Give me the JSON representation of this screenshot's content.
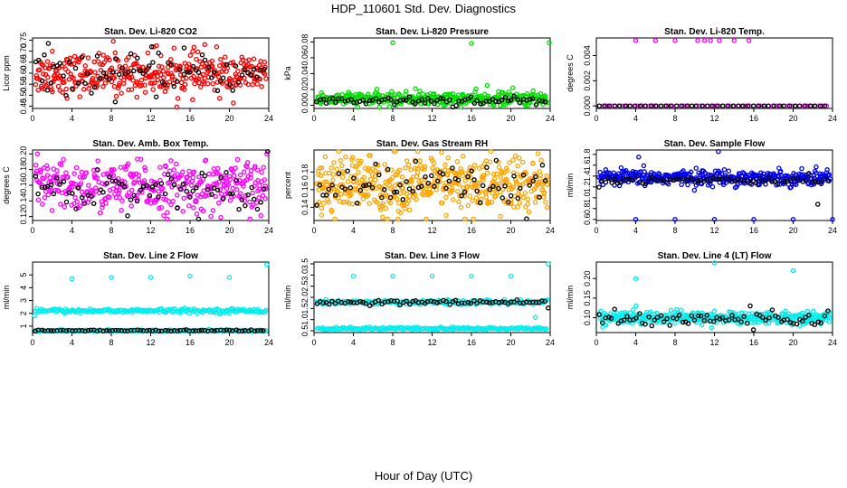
{
  "figure": {
    "title": "HDP_110601  Std. Dev. Diagnostics",
    "xlabel": "Hour of Day (UTC)"
  },
  "chart_data": [
    {
      "type": "scatter",
      "title": "Stan. Dev. Li-820 CO2",
      "ylabel": "Licor ppm",
      "xlim": [
        0,
        24
      ],
      "ylim": [
        0.44,
        0.76
      ],
      "x_ticks": [
        "0",
        "4",
        "8",
        "12",
        "16",
        "20",
        "24"
      ],
      "y_ticks": [
        0.45,
        0.5,
        0.55,
        0.6,
        0.65,
        0.7,
        0.75
      ],
      "y_tick_labels": [
        "0.45",
        "0.50",
        "0.55",
        "0.60",
        "0.65",
        "0.70",
        "0.75"
      ],
      "primary_color": "#ff0000",
      "series": [
        {
          "color": "#ff0000",
          "center": 0.595,
          "spread": 0.045,
          "n": 380,
          "x": [
            8.2,
            12.3,
            17.5,
            2.0
          ],
          "y": [
            0.745,
            0.72,
            0.73,
            0.7
          ]
        },
        {
          "color": "#000000",
          "center": 0.595,
          "spread": 0.04,
          "n": 75,
          "x": [
            1.6,
            12.1,
            15.4,
            8.4
          ],
          "y": [
            0.735,
            0.72,
            0.715,
            0.47
          ]
        }
      ]
    },
    {
      "type": "scatter",
      "title": "Stan. Dev. Li-820 Pressure",
      "ylabel": "kPa",
      "xlim": [
        0,
        24
      ],
      "ylim": [
        -0.004,
        0.085
      ],
      "x_ticks": [
        "0",
        "4",
        "8",
        "12",
        "16",
        "20",
        "24"
      ],
      "y_ticks": [
        0,
        0.02,
        0.04,
        0.06,
        0.08
      ],
      "y_tick_labels": [
        "0.00",
        "0.02",
        "0.04",
        "0.06",
        "0.08"
      ],
      "primary_color": "#00dd00",
      "series": [
        {
          "color": "#00dd00",
          "center": 0.008,
          "spread": 0.004,
          "n": 380,
          "x": [
            8.0,
            16.0,
            23.9,
            10.3,
            17.6,
            20.2
          ],
          "y": [
            0.079,
            0.078,
            0.079,
            0.021,
            0.025,
            0.022
          ]
        },
        {
          "color": "#000000",
          "center": 0.006,
          "spread": 0.003,
          "n": 75,
          "x": [],
          "y": []
        }
      ]
    },
    {
      "type": "scatter",
      "title": "Stan. Dev. Li-820 Temp.",
      "ylabel": "degrees C",
      "xlim": [
        0,
        24
      ],
      "ylim": [
        -0.0002,
        0.0054
      ],
      "x_ticks": [
        "0",
        "4",
        "8",
        "12",
        "16",
        "20",
        "24"
      ],
      "y_ticks": [
        0,
        0.002,
        0.004
      ],
      "y_tick_labels": [
        "0.000",
        "0.002",
        "0.004"
      ],
      "primary_color": "#ff00ff",
      "series": [
        {
          "color": "#ff00ff",
          "center": 0.0,
          "spread": 0.0,
          "n": 60,
          "x": [
            4.0,
            6.0,
            8.0,
            10.3,
            11.0,
            11.6,
            12.5,
            14.0,
            15.5
          ],
          "y": [
            0.0052,
            0.0052,
            0.0052,
            0.0052,
            0.0052,
            0.0052,
            0.0052,
            0.0052,
            0.0052
          ]
        },
        {
          "color": "#000000",
          "center": 0.0,
          "spread": 0.0,
          "n": 45,
          "x": [],
          "y": []
        }
      ]
    },
    {
      "type": "scatter",
      "title": "Stan. Dev. Amb. Box Temp.",
      "ylabel": "degrees C",
      "xlim": [
        0,
        24
      ],
      "ylim": [
        0.115,
        0.205
      ],
      "x_ticks": [
        "0",
        "4",
        "8",
        "12",
        "16",
        "20",
        "24"
      ],
      "y_ticks": [
        0.12,
        0.14,
        0.16,
        0.18,
        0.2
      ],
      "y_tick_labels": [
        "0.12",
        "0.14",
        "0.16",
        "0.18",
        "0.20"
      ],
      "primary_color": "#ff00ff",
      "series": [
        {
          "color": "#ff00ff",
          "center": 0.157,
          "spread": 0.016,
          "n": 380,
          "x": [
            0.5,
            23.8
          ],
          "y": [
            0.2,
            0.2
          ]
        },
        {
          "color": "#000000",
          "center": 0.155,
          "spread": 0.012,
          "n": 75,
          "x": [
            23.9
          ],
          "y": [
            0.203
          ]
        }
      ]
    },
    {
      "type": "scatter",
      "title": "Stan. Dev. Gas Stream RH",
      "ylabel": "percent",
      "xlim": [
        0,
        24
      ],
      "ylim": [
        0.125,
        0.205
      ],
      "x_ticks": [
        "0",
        "4",
        "8",
        "12",
        "16",
        "20",
        "24"
      ],
      "y_ticks": [
        0.14,
        0.16,
        0.18
      ],
      "y_tick_labels": [
        "0.14",
        "0.16",
        "0.18"
      ],
      "primary_color": "#ffa500",
      "series": [
        {
          "color": "#ffa500",
          "center": 0.165,
          "spread": 0.017,
          "n": 480,
          "x": [],
          "y": []
        },
        {
          "color": "#000000",
          "center": 0.163,
          "spread": 0.012,
          "n": 75,
          "x": [],
          "y": []
        }
      ]
    },
    {
      "type": "scatter",
      "title": "Stan. Dev. Sample Flow",
      "ylabel": "ml/min",
      "xlim": [
        0,
        24
      ],
      "ylim": [
        0.58,
        1.88
      ],
      "x_ticks": [
        "0",
        "4",
        "8",
        "12",
        "16",
        "20",
        "24"
      ],
      "y_ticks": [
        0.6,
        0.8,
        1.0,
        1.2,
        1.4,
        1.6,
        1.8
      ],
      "y_tick_labels": [
        "0.6",
        "0.8",
        "1.0",
        "1.2",
        "1.4",
        "1.6",
        "1.8"
      ],
      "primary_color": "#0000ee",
      "series": [
        {
          "color": "#0000ee",
          "center": 1.37,
          "spread": 0.07,
          "n": 380,
          "x": [
            4.0,
            8.0,
            12.0,
            16.0,
            20.0,
            24.0,
            4.3,
            12.4
          ],
          "y": [
            0.6,
            0.6,
            0.6,
            0.6,
            0.6,
            0.6,
            1.75,
            1.85
          ]
        },
        {
          "color": "#000000",
          "center": 1.33,
          "spread": 0.04,
          "n": 75,
          "x": [
            22.5
          ],
          "y": [
            0.88
          ]
        }
      ]
    },
    {
      "type": "scatter",
      "title": "Stan. Dev. Line 2 Flow",
      "ylabel": "ml/min",
      "xlim": [
        0,
        24
      ],
      "ylim": [
        0.5,
        6.0
      ],
      "x_ticks": [
        "0",
        "4",
        "8",
        "12",
        "16",
        "20",
        "24"
      ],
      "y_ticks": [
        1,
        2,
        3,
        4,
        5
      ],
      "y_tick_labels": [
        "1",
        "2",
        "3",
        "4",
        "5"
      ],
      "primary_color": "#00eeee",
      "series": [
        {
          "color": "#00eeee",
          "center": 2.2,
          "spread": 0.08,
          "n": 200,
          "x": [
            4.0,
            8.0,
            12.0,
            16.0,
            20.0,
            23.8,
            0.2
          ],
          "y": [
            4.7,
            4.8,
            4.8,
            4.9,
            4.8,
            5.8,
            1.8
          ]
        },
        {
          "color": "#00eeee",
          "center": 0.65,
          "spread": 0.03,
          "n": 180,
          "x": [],
          "y": []
        },
        {
          "color": "#000000",
          "center": 0.65,
          "spread": 0.03,
          "n": 75,
          "x": [],
          "y": []
        }
      ]
    },
    {
      "type": "scatter",
      "title": "Stan. Dev. Line 3 Flow",
      "ylabel": "ml/min",
      "xlim": [
        0,
        24
      ],
      "ylim": [
        0.42,
        3.58
      ],
      "x_ticks": [
        "0",
        "4",
        "8",
        "12",
        "16",
        "20",
        "24"
      ],
      "y_ticks": [
        0.5,
        1.0,
        1.5,
        2.0,
        2.5,
        3.0,
        3.5
      ],
      "y_tick_labels": [
        "0.5",
        "1.0",
        "1.5",
        "2.0",
        "2.5",
        "3.0",
        "3.5"
      ],
      "primary_color": "#00eeee",
      "series": [
        {
          "color": "#00eeee",
          "center": 1.78,
          "spread": 0.05,
          "n": 200,
          "x": [
            4.0,
            8.0,
            12.0,
            16.0,
            20.0,
            23.8,
            1.2,
            22.5
          ],
          "y": [
            2.95,
            2.95,
            2.95,
            2.95,
            2.95,
            3.5,
            1.9,
            1.1
          ]
        },
        {
          "color": "#00eeee",
          "center": 0.6,
          "spread": 0.03,
          "n": 180,
          "x": [],
          "y": []
        },
        {
          "color": "#000000",
          "center": 1.78,
          "spread": 0.05,
          "n": 75,
          "x": [
            23.8
          ],
          "y": [
            1.52
          ]
        }
      ]
    },
    {
      "type": "scatter",
      "title": "Stan. Dev. Line 4 (LT) Flow",
      "ylabel": "ml/min",
      "xlim": [
        0,
        24
      ],
      "ylim": [
        0.062,
        0.242
      ],
      "x_ticks": [
        "0",
        "4",
        "8",
        "12",
        "16",
        "20",
        "24"
      ],
      "y_ticks": [
        0.1,
        0.15,
        0.2
      ],
      "y_tick_labels": [
        "0.10",
        "0.15",
        "0.20"
      ],
      "primary_color": "#00eeee",
      "series": [
        {
          "color": "#00eeee",
          "center": 0.1,
          "spread": 0.008,
          "n": 380,
          "x": [
            4.0,
            12.0,
            20.0
          ],
          "y": [
            0.2,
            0.24,
            0.22
          ]
        },
        {
          "color": "#000000",
          "center": 0.097,
          "spread": 0.01,
          "n": 75,
          "x": [],
          "y": []
        }
      ]
    }
  ]
}
